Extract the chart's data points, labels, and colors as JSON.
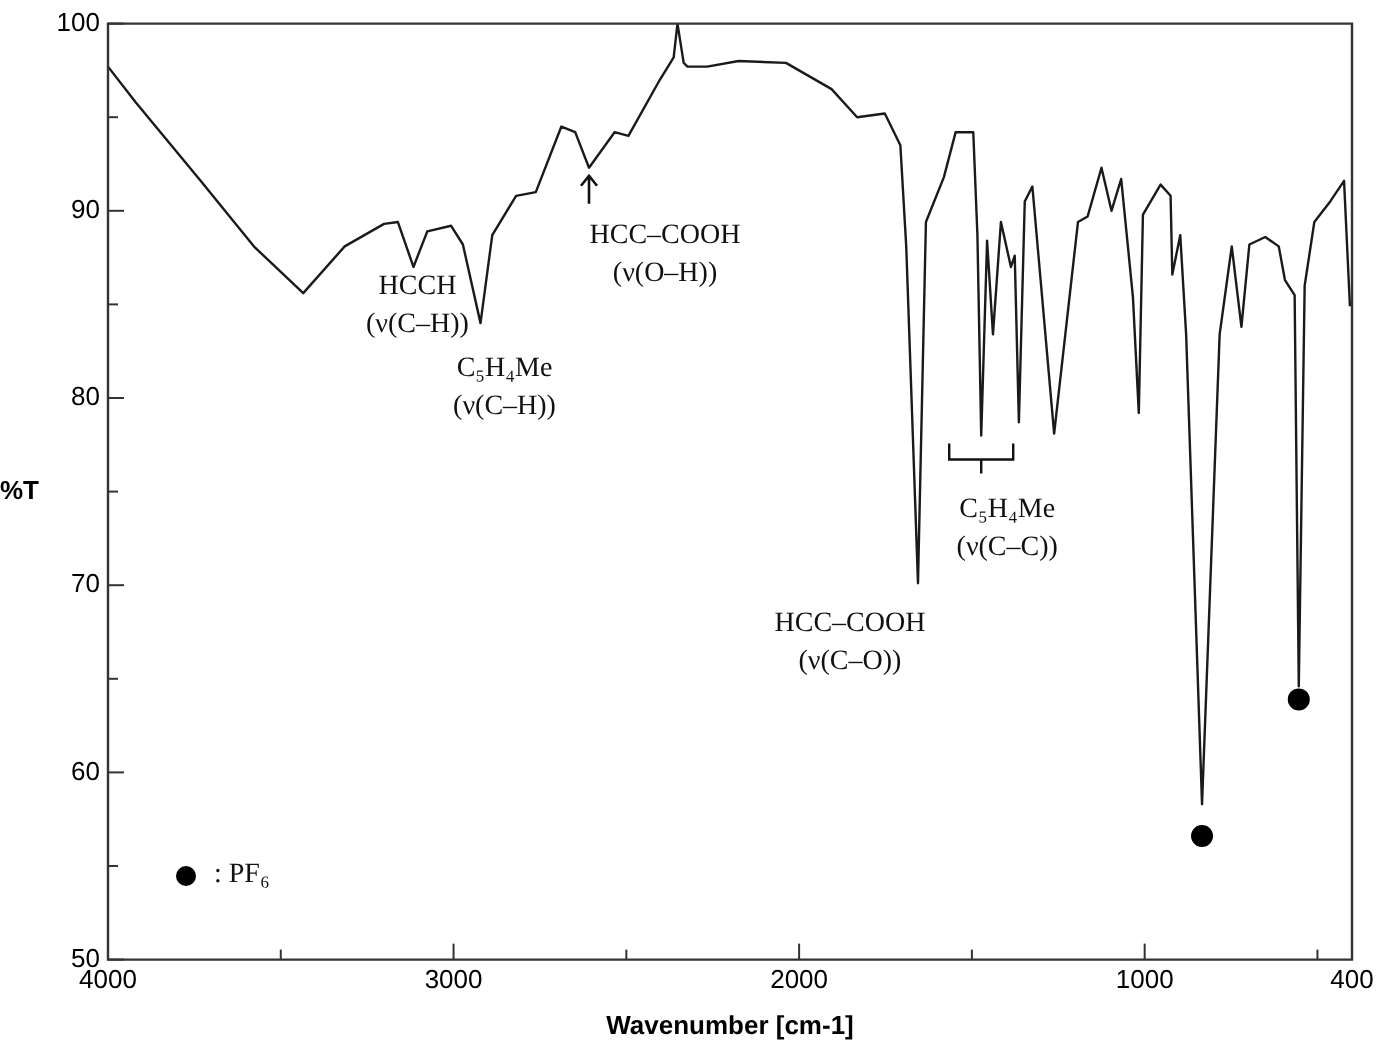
{
  "chart_data": {
    "type": "line",
    "xlabel": "Wavenumber [cm-1]",
    "ylabel": "%T",
    "xlim": [
      4000,
      400
    ],
    "xticks": [
      4000,
      {
        "value": 3500,
        "label": null
      },
      3000,
      {
        "value": 2500,
        "label": null
      },
      2000,
      {
        "value": 1500,
        "label": null
      },
      1000,
      {
        "value": 500,
        "label": null
      },
      400
    ],
    "ylim": [
      50,
      100
    ],
    "yticks": [
      50,
      {
        "value": 55,
        "label": null
      },
      60,
      {
        "value": 65,
        "label": null
      },
      70,
      {
        "value": 75,
        "label": null
      },
      80,
      {
        "value": 85,
        "label": null
      },
      90,
      {
        "value": 95,
        "label": null
      },
      100
    ],
    "grid": false,
    "legend": "bottom left",
    "series": [
      {
        "color": "#1a1a1a",
        "marker": "none",
        "x": [
          4000,
          3920,
          3732,
          3578,
          3435,
          3315,
          3201,
          3161,
          3116,
          3076,
          3007,
          2973,
          2922,
          2888,
          2819,
          2762,
          2688,
          2648,
          2608,
          2534,
          2494,
          2403,
          2363,
          2352,
          2334,
          2323,
          2266,
          2175,
          2038,
          1906,
          1832,
          1752,
          1707,
          1690,
          1656,
          1633,
          1581,
          1547,
          1496,
          1484,
          1473,
          1456,
          1439,
          1416,
          1387,
          1376,
          1364,
          1347,
          1325,
          1262,
          1193,
          1165,
          1125,
          1096,
          1068,
          1034,
          1017,
          1005,
          954,
          925,
          920,
          897,
          880,
          834,
          783,
          748,
          720,
          697,
          651,
          612,
          594,
          566,
          554,
          537,
          509,
          463,
          423,
          406
        ],
        "values": [
          97.7,
          95.8,
          91.6,
          88.1,
          85.6,
          88.1,
          89.3,
          89.4,
          87.0,
          88.9,
          89.2,
          88.2,
          84.0,
          88.7,
          90.8,
          91.0,
          94.5,
          94.2,
          92.3,
          94.2,
          94.0,
          97.0,
          98.2,
          100,
          97.9,
          97.7,
          97.7,
          98.0,
          97.9,
          96.5,
          95.0,
          95.2,
          93.5,
          88.1,
          70.1,
          89.4,
          91.8,
          94.2,
          94.2,
          88.7,
          78.0,
          88.4,
          83.4,
          89.4,
          87.0,
          87.6,
          78.7,
          90.5,
          91.3,
          78.1,
          89.4,
          89.7,
          92.3,
          90.0,
          91.7,
          85.4,
          79.2,
          89.8,
          91.4,
          90.8,
          86.6,
          88.7,
          83.4,
          58.3,
          83.4,
          88.1,
          83.8,
          88.2,
          88.6,
          88.1,
          86.3,
          85.5,
          64.6,
          86.0,
          89.4,
          90.5,
          91.6,
          84.9
        ]
      },
      {
        "type": "scatter",
        "name": ": PF₆",
        "color": "#000000",
        "marker": "circle",
        "x": [
          834,
          554
        ],
        "values": [
          56.6,
          63.9
        ]
      }
    ],
    "annotations": [
      {
        "text": "HCCH\n(ν(C–H))",
        "x": 3116,
        "y": 87.0
      },
      {
        "text": "C₅H₄Me\n(ν(C–H))",
        "x": 2922,
        "y": 84.0
      },
      {
        "text": "HCC–COOH\n(ν(O–H))",
        "x": 2608,
        "y": 92.3
      },
      {
        "text": "C₅H₄Me\n(ν(C–C))",
        "x": 1473,
        "y": 78.0
      },
      {
        "text": "HCC–COOH\n(ν(C–O))",
        "x": 1656,
        "y": 70.1
      }
    ]
  }
}
